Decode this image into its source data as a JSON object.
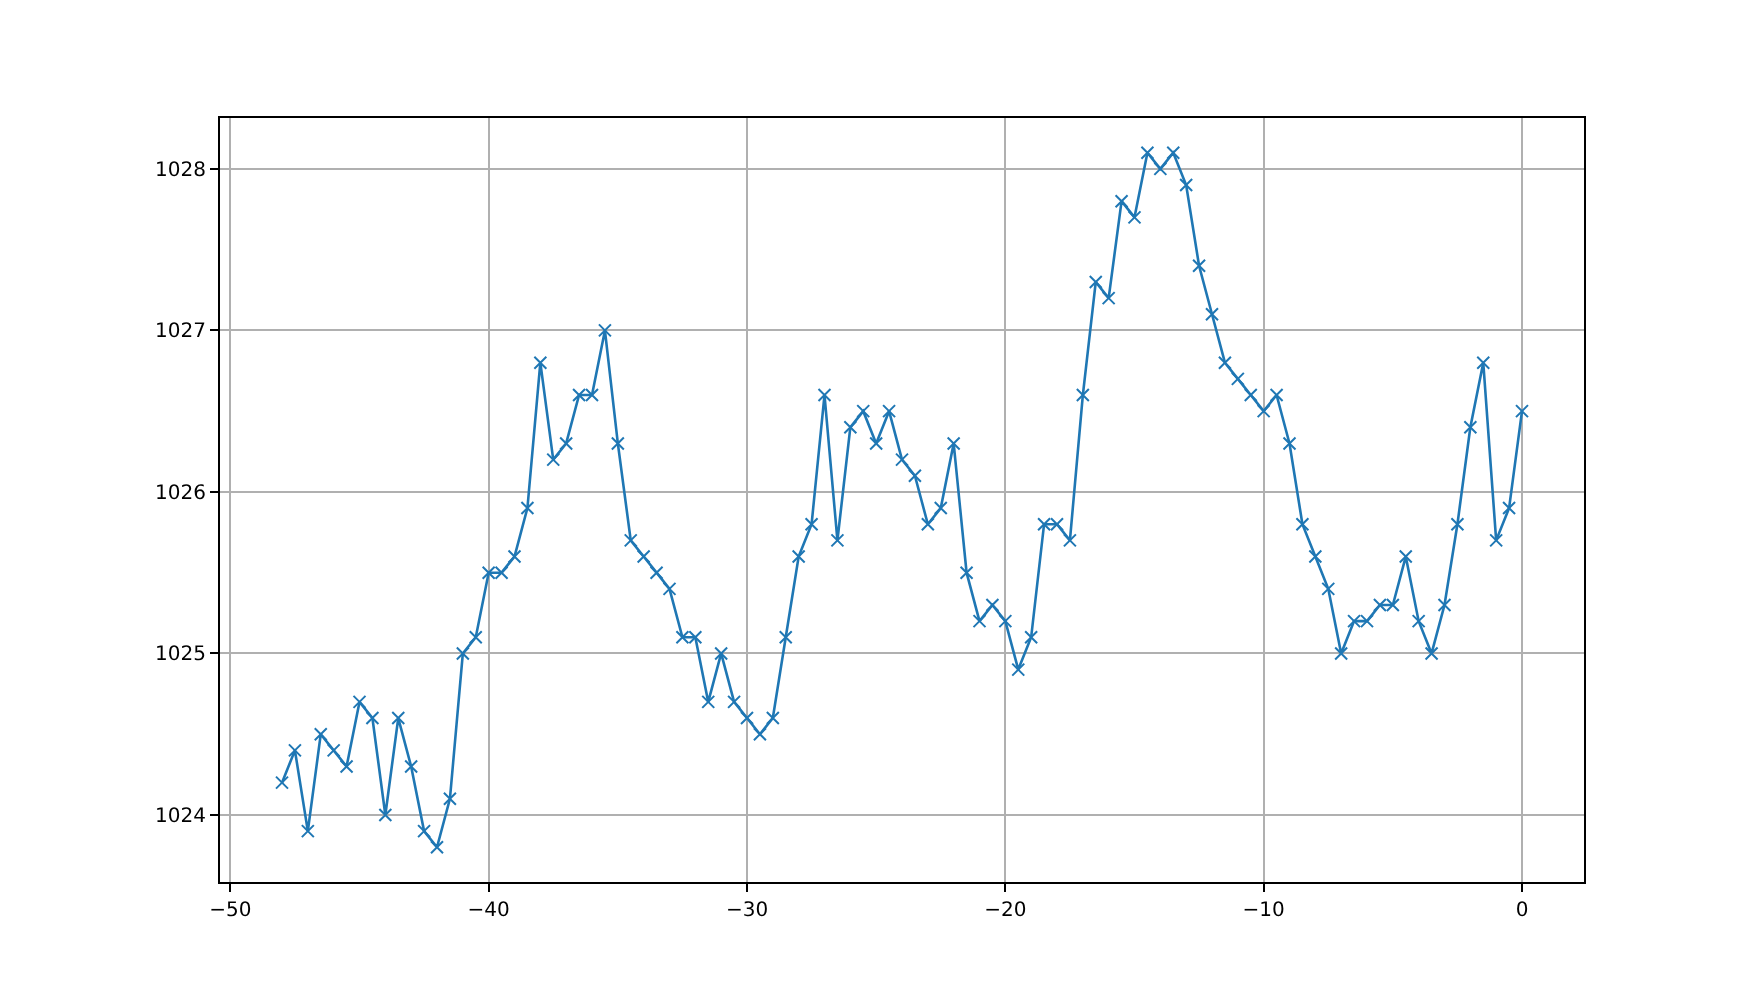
{
  "chart_data": {
    "type": "line",
    "x": [
      -48,
      -47.5,
      -47,
      -46.5,
      -46,
      -45.5,
      -45,
      -44.5,
      -44,
      -43.5,
      -43,
      -42.5,
      -42,
      -41.5,
      -41,
      -40.5,
      -40,
      -39.5,
      -39,
      -38.5,
      -38,
      -37.5,
      -37,
      -36.5,
      -36,
      -35.5,
      -35,
      -34.5,
      -34,
      -33.5,
      -33,
      -32.5,
      -32,
      -31.5,
      -31,
      -30.5,
      -30,
      -29.5,
      -29,
      -28.5,
      -28,
      -27.5,
      -27,
      -26.5,
      -26,
      -25.5,
      -25,
      -24.5,
      -24,
      -23.5,
      -23,
      -22.5,
      -22,
      -21.5,
      -21,
      -20.5,
      -20,
      -19.5,
      -19,
      -18.5,
      -18,
      -17.5,
      -17,
      -16.5,
      -16,
      -15.5,
      -15,
      -14.5,
      -14,
      -13.5,
      -13,
      -12.5,
      -12,
      -11.5,
      -11,
      -10.5,
      -10,
      -9.5,
      -9,
      -8.5,
      -8,
      -7.5,
      -7,
      -6.5,
      -6,
      -5.5,
      -5,
      -4.5,
      -4,
      -3.5,
      -3,
      -2.5,
      -2,
      -1.5,
      -1,
      -0.5,
      0
    ],
    "series": [
      {
        "color": "#1f77b4",
        "values": [
          1024.2,
          1024.4,
          1023.9,
          1024.5,
          1024.4,
          1024.3,
          1024.7,
          1024.6,
          1024.0,
          1024.6,
          1024.3,
          1023.9,
          1023.8,
          1024.1,
          1025.0,
          1025.1,
          1025.5,
          1025.5,
          1025.6,
          1025.9,
          1026.8,
          1026.2,
          1026.3,
          1026.6,
          1026.6,
          1027.0,
          1026.3,
          1025.7,
          1025.6,
          1025.5,
          1025.4,
          1025.1,
          1025.1,
          1024.7,
          1025.0,
          1024.7,
          1024.6,
          1024.5,
          1024.6,
          1025.1,
          1025.6,
          1025.8,
          1026.6,
          1025.7,
          1026.4,
          1026.5,
          1026.3,
          1026.5,
          1026.2,
          1026.1,
          1025.8,
          1025.9,
          1026.3,
          1025.5,
          1025.2,
          1025.3,
          1025.2,
          1024.9,
          1025.1,
          1025.8,
          1025.8,
          1025.7,
          1026.6,
          1027.3,
          1027.2,
          1027.8,
          1027.7,
          1028.1,
          1028.0,
          1028.1,
          1027.9,
          1027.4,
          1027.1,
          1026.8,
          1026.7,
          1026.6,
          1026.5,
          1026.6,
          1026.3,
          1025.8,
          1025.6,
          1025.4,
          1025.0,
          1025.2,
          1025.2,
          1025.3,
          1025.3,
          1025.6,
          1025.2,
          1025.0,
          1025.3,
          1025.8,
          1026.4,
          1026.8,
          1025.7,
          1025.9,
          1026.5
        ]
      }
    ],
    "xlim": [
      -50.4,
      2.4
    ],
    "ylim": [
      1023.585,
      1028.315
    ],
    "xticks": [
      {
        "value": -50,
        "label": "−50"
      },
      {
        "value": -40,
        "label": "−40"
      },
      {
        "value": -30,
        "label": "−30"
      },
      {
        "value": -20,
        "label": "−20"
      },
      {
        "value": -10,
        "label": "−10"
      },
      0
    ],
    "yticks": [
      1024,
      1025,
      1026,
      1027,
      1028
    ],
    "grid": true,
    "marker": "cross",
    "line_style": "solid"
  }
}
